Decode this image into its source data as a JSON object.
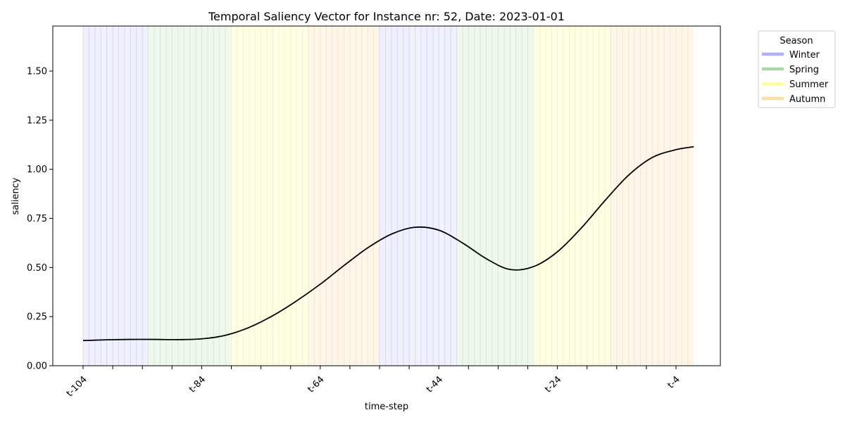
{
  "chart_data": {
    "type": "line",
    "title": "Temporal Saliency Vector for Instance nr: 52, Date: 2023-01-01",
    "xlabel": "time-step",
    "ylabel": "saliency",
    "x_range": [
      -104,
      -1
    ],
    "ylim": [
      0,
      1.72
    ],
    "y_ticks": [
      "0.00",
      "0.25",
      "0.50",
      "0.75",
      "1.00",
      "1.25",
      "1.50"
    ],
    "x_ticks": [
      {
        "x": -104,
        "label": "t-104"
      },
      {
        "x": -84,
        "label": "t-84"
      },
      {
        "x": -64,
        "label": "t-64"
      },
      {
        "x": -44,
        "label": "t-44"
      },
      {
        "x": -24,
        "label": "t-24"
      },
      {
        "x": -4,
        "label": "t-4"
      }
    ],
    "minor_x_ticks": [
      -99,
      -94,
      -89,
      -79,
      -74,
      -69,
      -59,
      -54,
      -49,
      -39,
      -34,
      -29,
      -19,
      -14,
      -9
    ],
    "grid": false,
    "series": [
      {
        "color": "#000000",
        "x": [
          -104,
          -100,
          -96,
          -92,
          -88,
          -84,
          -80,
          -76,
          -72,
          -68,
          -64,
          -60,
          -56,
          -52,
          -48,
          -44,
          -40,
          -36,
          -32,
          -28,
          -24,
          -20,
          -16,
          -12,
          -8,
          -4,
          -1
        ],
        "y": [
          0.128,
          0.132,
          0.134,
          0.134,
          0.133,
          0.137,
          0.155,
          0.195,
          0.255,
          0.33,
          0.415,
          0.51,
          0.6,
          0.67,
          0.705,
          0.69,
          0.625,
          0.545,
          0.49,
          0.505,
          0.58,
          0.7,
          0.84,
          0.97,
          1.06,
          1.1,
          1.115
        ]
      }
    ],
    "seasons": [
      {
        "season": "Winter",
        "start": -104,
        "end": -93
      },
      {
        "season": "Spring",
        "start": -93,
        "end": -79
      },
      {
        "season": "Summer",
        "start": -79,
        "end": -66
      },
      {
        "season": "Autumn",
        "start": -66,
        "end": -54
      },
      {
        "season": "Winter",
        "start": -54,
        "end": -41
      },
      {
        "season": "Spring",
        "start": -41,
        "end": -28
      },
      {
        "season": "Summer",
        "start": -28,
        "end": -15
      },
      {
        "season": "Autumn",
        "start": -15,
        "end": -1
      }
    ],
    "legend": {
      "title": "Season",
      "placement": "outside-top-right",
      "entries": [
        {
          "label": "Winter",
          "color": "#b0b0ff"
        },
        {
          "label": "Spring",
          "color": "#a8d8a8"
        },
        {
          "label": "Summer",
          "color": "#ffff99"
        },
        {
          "label": "Autumn",
          "color": "#ffdda0"
        }
      ]
    },
    "season_fill": {
      "Winter": "#f0f0ff",
      "Spring": "#f0f8ee",
      "Summer": "#ffffe6",
      "Autumn": "#fff6ea"
    },
    "season_stripe": {
      "Winter": "#d6d6f6",
      "Spring": "#d6e8d6",
      "Summer": "#f2f2c8",
      "Autumn": "#f6e4cc"
    }
  }
}
